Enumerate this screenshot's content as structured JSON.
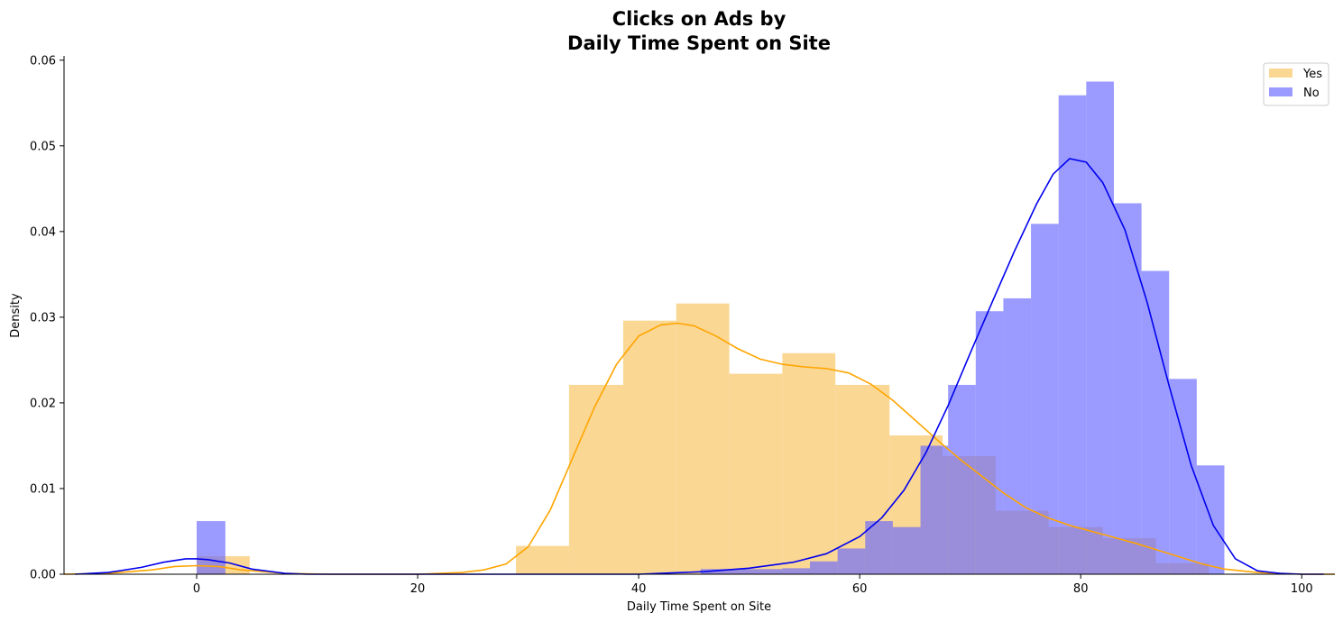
{
  "chart_data": {
    "type": "histogram",
    "title_line1": "Clicks on Ads by",
    "title_line2": "Daily Time Spent on Site",
    "xlabel": "Daily Time Spent on Site",
    "ylabel": "Density",
    "xlim": [
      -12,
      103
    ],
    "ylim": [
      0,
      0.0605
    ],
    "xticks": [
      0,
      20,
      40,
      60,
      80,
      100
    ],
    "yticks": [
      0.0,
      0.01,
      0.02,
      0.03,
      0.04,
      0.05,
      0.06
    ],
    "ytick_labels": [
      "0.00",
      "0.01",
      "0.02",
      "0.03",
      "0.04",
      "0.05",
      "0.06"
    ],
    "legend_position": "top-right",
    "series": [
      {
        "name": "Yes",
        "color": "#f9c25a",
        "line_color": "#ffa500",
        "bins": [
          {
            "x0": 0.0,
            "x1": 4.8,
            "y": 0.0021
          },
          {
            "x0": 28.9,
            "x1": 33.7,
            "y": 0.0033
          },
          {
            "x0": 33.7,
            "x1": 38.6,
            "y": 0.0221
          },
          {
            "x0": 38.6,
            "x1": 43.4,
            "y": 0.0296
          },
          {
            "x0": 43.4,
            "x1": 48.2,
            "y": 0.0316
          },
          {
            "x0": 48.2,
            "x1": 53.0,
            "y": 0.0234
          },
          {
            "x0": 53.0,
            "x1": 57.8,
            "y": 0.0258
          },
          {
            "x0": 57.8,
            "x1": 62.7,
            "y": 0.0221
          },
          {
            "x0": 62.7,
            "x1": 67.5,
            "y": 0.0162
          },
          {
            "x0": 67.5,
            "x1": 72.3,
            "y": 0.0138
          },
          {
            "x0": 72.3,
            "x1": 77.1,
            "y": 0.0074
          },
          {
            "x0": 77.1,
            "x1": 82.0,
            "y": 0.0055
          },
          {
            "x0": 82.0,
            "x1": 86.8,
            "y": 0.0042
          },
          {
            "x0": 86.8,
            "x1": 91.6,
            "y": 0.0013
          }
        ],
        "kde": [
          [
            -12,
            0.0
          ],
          [
            -8,
            0.0001
          ],
          [
            -4,
            0.0005
          ],
          [
            -2,
            0.0009
          ],
          [
            0,
            0.001
          ],
          [
            2,
            0.0009
          ],
          [
            4,
            0.0005
          ],
          [
            8,
            0.0001
          ],
          [
            12,
            0.0
          ],
          [
            20,
            0.0
          ],
          [
            24,
            0.0002
          ],
          [
            26,
            0.0005
          ],
          [
            28,
            0.0012
          ],
          [
            30,
            0.0032
          ],
          [
            32,
            0.0075
          ],
          [
            34,
            0.0135
          ],
          [
            36,
            0.0195
          ],
          [
            38,
            0.0245
          ],
          [
            40,
            0.0278
          ],
          [
            42,
            0.0291
          ],
          [
            43.5,
            0.0293
          ],
          [
            45,
            0.029
          ],
          [
            47,
            0.0278
          ],
          [
            49,
            0.0263
          ],
          [
            51,
            0.0251
          ],
          [
            53,
            0.0245
          ],
          [
            55,
            0.0242
          ],
          [
            57,
            0.024
          ],
          [
            59,
            0.0235
          ],
          [
            61,
            0.0222
          ],
          [
            63,
            0.0203
          ],
          [
            65,
            0.018
          ],
          [
            67,
            0.0157
          ],
          [
            69,
            0.0135
          ],
          [
            71,
            0.0115
          ],
          [
            73,
            0.0095
          ],
          [
            75,
            0.0078
          ],
          [
            77,
            0.0066
          ],
          [
            79,
            0.0057
          ],
          [
            81,
            0.005
          ],
          [
            83,
            0.0043
          ],
          [
            85,
            0.0036
          ],
          [
            87,
            0.0028
          ],
          [
            89,
            0.002
          ],
          [
            91,
            0.0012
          ],
          [
            93,
            0.0006
          ],
          [
            96,
            0.0002
          ],
          [
            100,
            0.0
          ],
          [
            103,
            0.0
          ]
        ]
      },
      {
        "name": "No",
        "color": "#6666ff",
        "line_color": "#0000ee",
        "bins": [
          {
            "x0": 0.0,
            "x1": 2.6,
            "y": 0.0062
          },
          {
            "x0": 45.6,
            "x1": 53.0,
            "y": 0.0006
          },
          {
            "x0": 53.0,
            "x1": 55.5,
            "y": 0.0007
          },
          {
            "x0": 55.5,
            "x1": 58.0,
            "y": 0.0015
          },
          {
            "x0": 58.0,
            "x1": 60.5,
            "y": 0.003
          },
          {
            "x0": 60.5,
            "x1": 63.0,
            "y": 0.0062
          },
          {
            "x0": 63.0,
            "x1": 65.5,
            "y": 0.0055
          },
          {
            "x0": 65.5,
            "x1": 68.0,
            "y": 0.015
          },
          {
            "x0": 68.0,
            "x1": 70.5,
            "y": 0.0221
          },
          {
            "x0": 70.5,
            "x1": 73.0,
            "y": 0.0307
          },
          {
            "x0": 73.0,
            "x1": 75.5,
            "y": 0.0322
          },
          {
            "x0": 75.5,
            "x1": 78.0,
            "y": 0.0409
          },
          {
            "x0": 78.0,
            "x1": 80.5,
            "y": 0.0559
          },
          {
            "x0": 80.5,
            "x1": 83.0,
            "y": 0.0575
          },
          {
            "x0": 83.0,
            "x1": 85.5,
            "y": 0.0433
          },
          {
            "x0": 85.5,
            "x1": 88.0,
            "y": 0.0354
          },
          {
            "x0": 88.0,
            "x1": 90.5,
            "y": 0.0228
          },
          {
            "x0": 90.5,
            "x1": 93.0,
            "y": 0.0127
          }
        ],
        "kde": [
          [
            -11,
            0.0
          ],
          [
            -8,
            0.0002
          ],
          [
            -5,
            0.0008
          ],
          [
            -3,
            0.0014
          ],
          [
            -1,
            0.0018
          ],
          [
            0,
            0.0018
          ],
          [
            1,
            0.0017
          ],
          [
            3,
            0.0013
          ],
          [
            5,
            0.0006
          ],
          [
            8,
            0.0001
          ],
          [
            10,
            0.0
          ],
          [
            40,
            0.0
          ],
          [
            46,
            0.0003
          ],
          [
            50,
            0.0007
          ],
          [
            54,
            0.0014
          ],
          [
            57,
            0.0024
          ],
          [
            60,
            0.0044
          ],
          [
            62,
            0.0066
          ],
          [
            64,
            0.0098
          ],
          [
            66,
            0.0142
          ],
          [
            68,
            0.0197
          ],
          [
            70,
            0.0258
          ],
          [
            72,
            0.0318
          ],
          [
            74,
            0.0377
          ],
          [
            76,
            0.0432
          ],
          [
            77.5,
            0.0467
          ],
          [
            79,
            0.0485
          ],
          [
            80.5,
            0.0481
          ],
          [
            82,
            0.0457
          ],
          [
            84,
            0.0402
          ],
          [
            86,
            0.0318
          ],
          [
            88,
            0.022
          ],
          [
            90,
            0.0127
          ],
          [
            92,
            0.0057
          ],
          [
            94,
            0.0018
          ],
          [
            96,
            0.0004
          ],
          [
            98,
            0.0001
          ],
          [
            100,
            0.0
          ],
          [
            102,
            0.0
          ]
        ]
      }
    ]
  }
}
